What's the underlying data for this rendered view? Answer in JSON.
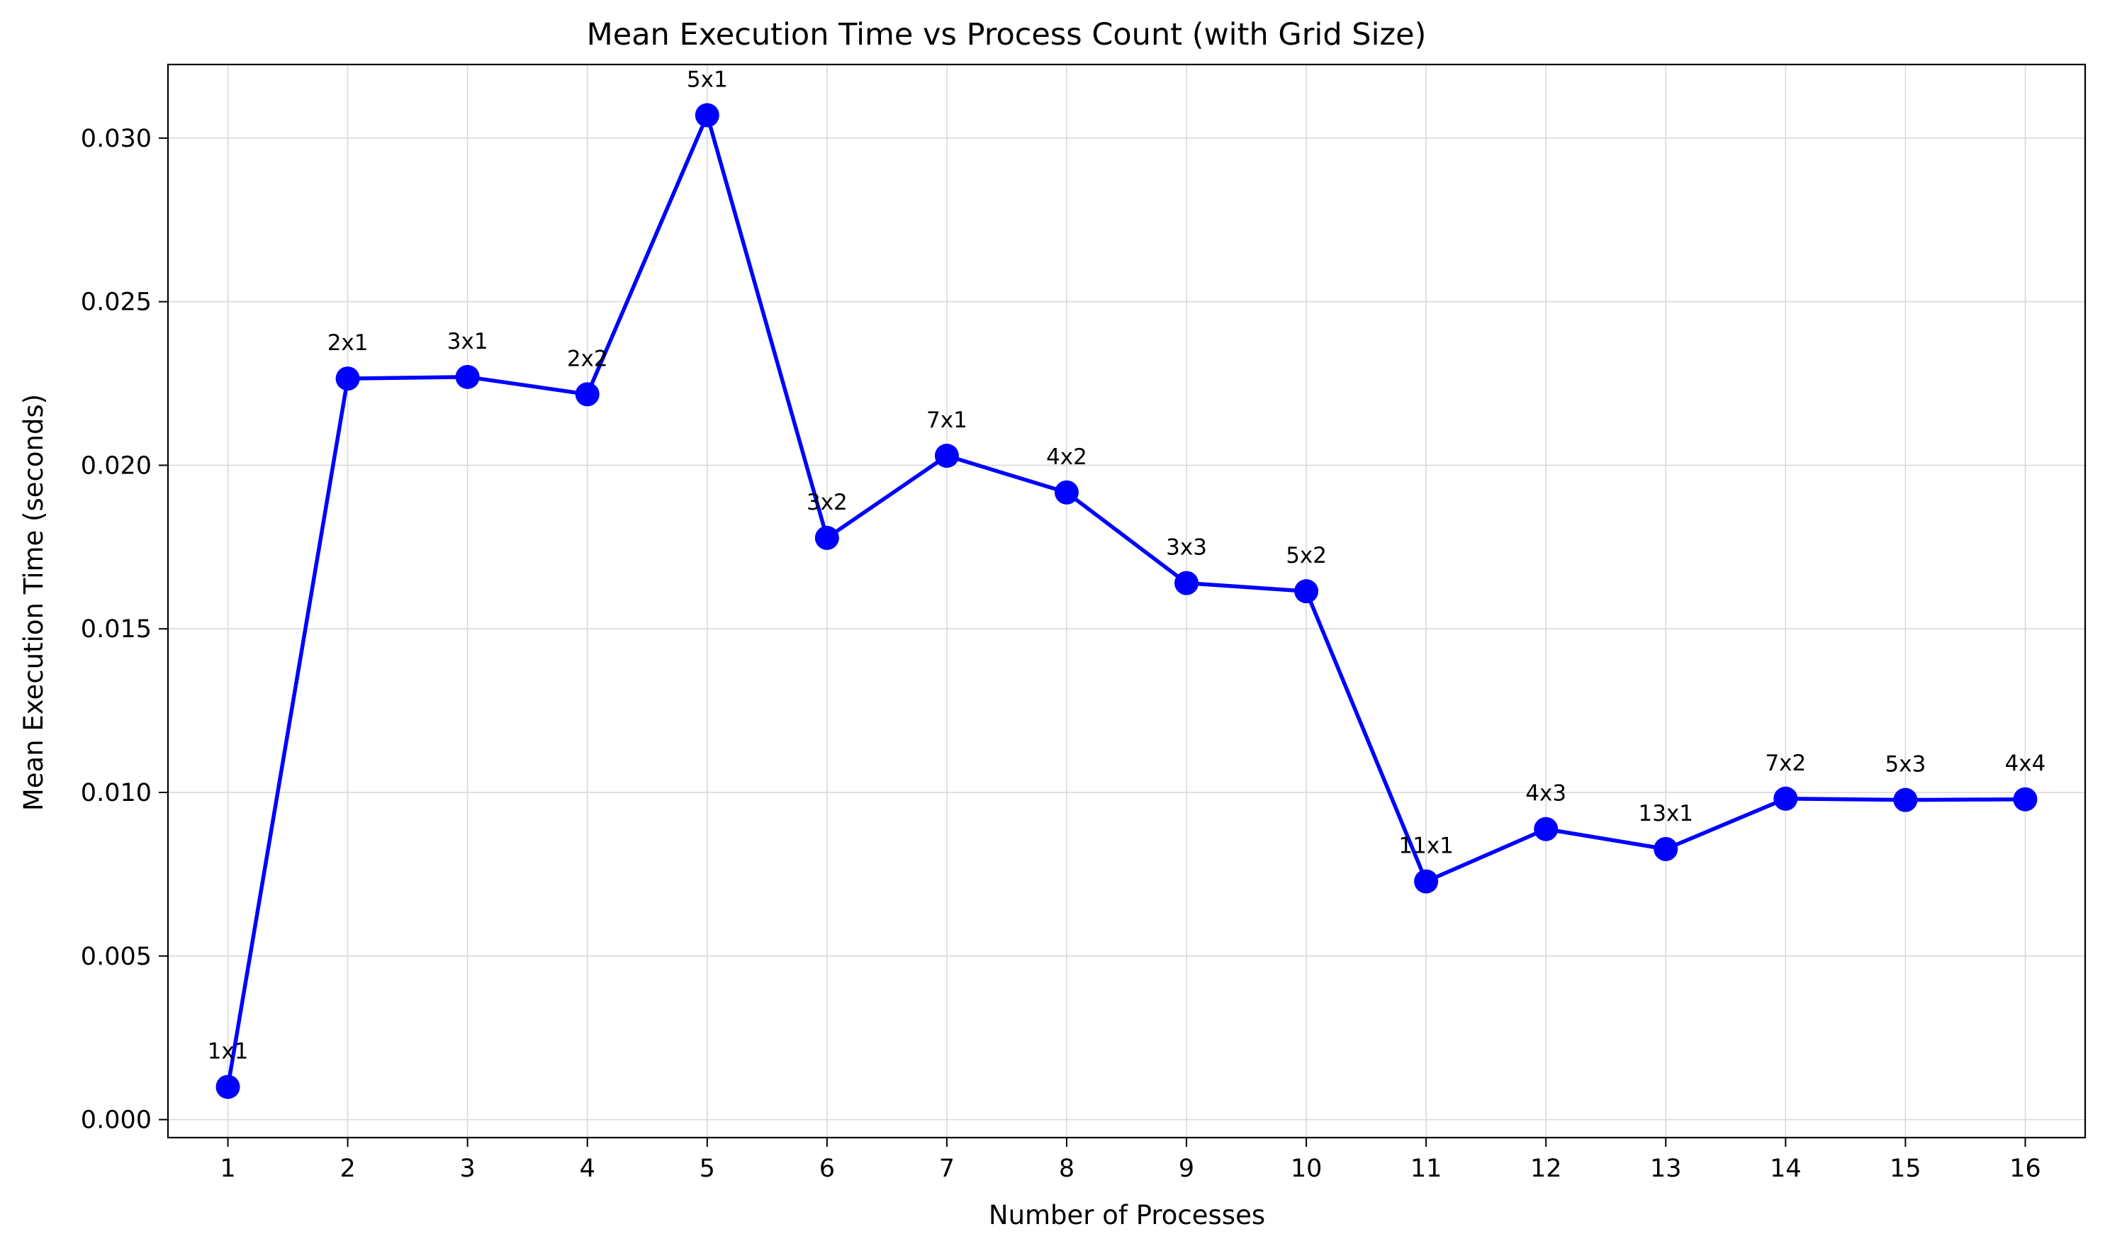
{
  "chart_data": {
    "type": "line",
    "title": "Mean Execution Time vs Process Count (with Grid Size)",
    "xlabel": "Number of Processes",
    "ylabel": "Mean Execution Time (seconds)",
    "x": [
      1,
      2,
      3,
      4,
      5,
      6,
      7,
      8,
      9,
      10,
      11,
      12,
      13,
      14,
      15,
      16
    ],
    "xlim": [
      0.5,
      16.5
    ],
    "ylim": [
      -0.00055,
      0.03225
    ],
    "yticks": [
      0.0,
      0.005,
      0.01,
      0.015,
      0.02,
      0.025,
      0.03
    ],
    "ytick_labels": [
      "0.000",
      "0.005",
      "0.010",
      "0.015",
      "0.020",
      "0.025",
      "0.030"
    ],
    "grid": true,
    "series": [
      {
        "color": "#0000ff",
        "marker": "circle",
        "values": [
          0.001,
          0.02265,
          0.0227,
          0.02217,
          0.0307,
          0.01778,
          0.02029,
          0.01917,
          0.0164,
          0.01615,
          0.00728,
          0.00888,
          0.00827,
          0.00981,
          0.00977,
          0.00979
        ],
        "point_labels": [
          "1x1",
          "2x1",
          "3x1",
          "2x2",
          "5x1",
          "3x2",
          "7x1",
          "4x2",
          "3x3",
          "5x2",
          "11x1",
          "4x3",
          "13x1",
          "7x2",
          "5x3",
          "4x4"
        ]
      }
    ]
  }
}
